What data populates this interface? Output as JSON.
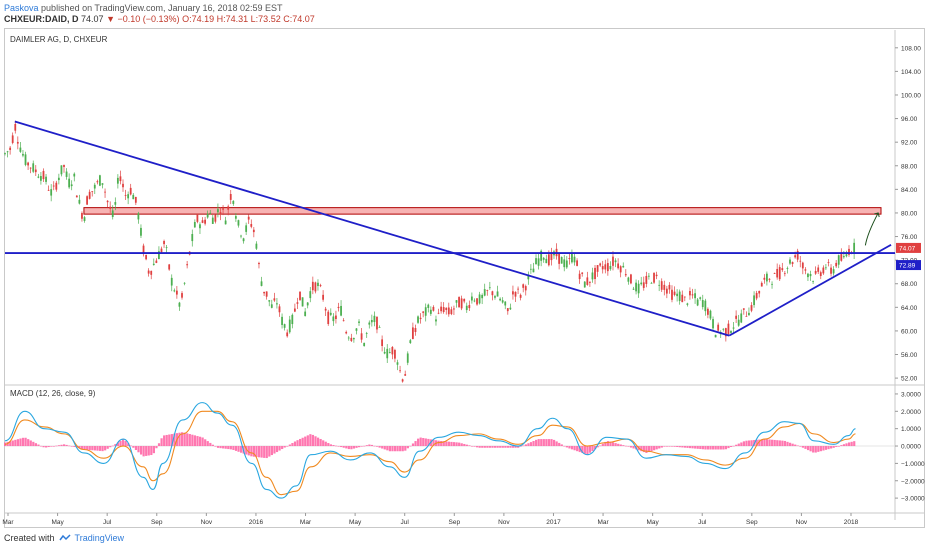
{
  "header": {
    "author": "Paskova",
    "published": "published on TradingView.com, January 16, 2018 02:59 EST",
    "symbol": "CHXEUR:DAID, D",
    "last": "74.07",
    "change": "−0.10 (−0.13%)",
    "ohlc_o": "O:74.19",
    "ohlc_h": "H:74.31",
    "ohlc_l": "L:73.52",
    "ohlc_c": "C:74.07"
  },
  "footer": {
    "created_with": "Created with",
    "brand": "TradingView"
  },
  "colors": {
    "up": "#4caf50",
    "down": "#e04040",
    "trend": "#1f1fc8",
    "zone_fill": "#f7b3b3",
    "zone_border": "#b00000",
    "macd": "#2aa7e0",
    "signal": "#f08a20",
    "hist": "#ff5fa2",
    "axis_text": "#333333"
  },
  "chart_data": [
    {
      "type": "candlestick",
      "title": "DAIMLER AG, D, CHXEUR",
      "x_labels": [
        "Mar",
        "May",
        "Jul",
        "Sep",
        "Nov",
        "2016",
        "Mar",
        "May",
        "Jul",
        "Sep",
        "Nov",
        "2017",
        "Mar",
        "May",
        "Jul",
        "Sep",
        "Nov",
        "2018"
      ],
      "y_ticks": [
        "108.00",
        "104.00",
        "100.00",
        "96.00",
        "92.00",
        "88.00",
        "84.00",
        "80.00",
        "76.00",
        "72.00",
        "68.00",
        "64.00",
        "60.00",
        "56.00",
        "52.00"
      ],
      "ylim": [
        51,
        110
      ],
      "price_labels": {
        "last": "74.07",
        "line": "72.89"
      },
      "horizontal_line": 73.2,
      "resistance_zone": [
        79.8,
        80.9
      ],
      "series_points": [
        [
          0,
          90
        ],
        [
          6,
          91
        ],
        [
          10,
          95
        ],
        [
          14,
          92
        ],
        [
          20,
          89
        ],
        [
          26,
          88
        ],
        [
          32,
          87
        ],
        [
          40,
          86
        ],
        [
          48,
          83
        ],
        [
          54,
          86
        ],
        [
          60,
          88
        ],
        [
          64,
          85
        ],
        [
          70,
          86
        ],
        [
          76,
          81
        ],
        [
          80,
          79
        ],
        [
          84,
          83
        ],
        [
          90,
          84
        ],
        [
          98,
          86
        ],
        [
          104,
          82
        ],
        [
          110,
          79
        ],
        [
          116,
          87
        ],
        [
          122,
          83
        ],
        [
          128,
          84
        ],
        [
          134,
          81
        ],
        [
          140,
          74
        ],
        [
          146,
          70
        ],
        [
          150,
          71
        ],
        [
          156,
          73
        ],
        [
          162,
          75
        ],
        [
          168,
          69
        ],
        [
          174,
          66
        ],
        [
          178,
          64
        ],
        [
          182,
          68
        ],
        [
          188,
          74
        ],
        [
          194,
          79
        ],
        [
          200,
          78
        ],
        [
          206,
          80
        ],
        [
          212,
          79
        ],
        [
          218,
          81
        ],
        [
          224,
          79
        ],
        [
          230,
          84
        ],
        [
          236,
          78
        ],
        [
          242,
          76
        ],
        [
          248,
          79
        ],
        [
          254,
          76
        ],
        [
          258,
          70
        ],
        [
          262,
          67
        ],
        [
          266,
          66
        ],
        [
          270,
          64
        ],
        [
          276,
          65
        ],
        [
          280,
          62
        ],
        [
          286,
          60
        ],
        [
          292,
          62
        ],
        [
          298,
          67
        ],
        [
          304,
          63
        ],
        [
          310,
          67
        ],
        [
          316,
          68
        ],
        [
          322,
          66
        ],
        [
          328,
          62
        ],
        [
          334,
          62
        ],
        [
          340,
          64
        ],
        [
          346,
          60
        ],
        [
          352,
          59
        ],
        [
          358,
          61
        ],
        [
          364,
          58
        ],
        [
          370,
          61
        ],
        [
          376,
          62
        ],
        [
          382,
          58
        ],
        [
          388,
          56
        ],
        [
          394,
          57
        ],
        [
          398,
          55
        ],
        [
          402,
          52
        ],
        [
          406,
          53
        ],
        [
          410,
          57
        ],
        [
          414,
          60
        ],
        [
          420,
          62
        ],
        [
          426,
          63
        ],
        [
          432,
          64
        ],
        [
          438,
          62
        ],
        [
          444,
          64
        ],
        [
          450,
          63
        ],
        [
          456,
          64
        ],
        [
          462,
          65
        ],
        [
          468,
          64
        ],
        [
          474,
          66
        ],
        [
          480,
          65
        ],
        [
          486,
          66
        ],
        [
          492,
          67
        ],
        [
          498,
          66
        ],
        [
          504,
          65
        ],
        [
          510,
          63
        ],
        [
          516,
          67
        ],
        [
          522,
          66
        ],
        [
          528,
          68
        ],
        [
          534,
          70
        ],
        [
          540,
          72
        ],
        [
          546,
          73
        ],
        [
          552,
          72
        ],
        [
          558,
          73
        ],
        [
          564,
          72
        ],
        [
          570,
          71
        ],
        [
          576,
          73
        ],
        [
          582,
          70
        ],
        [
          588,
          68
        ],
        [
          594,
          69
        ],
        [
          600,
          70
        ],
        [
          606,
          71
        ],
        [
          612,
          71
        ],
        [
          618,
          72
        ],
        [
          624,
          71
        ],
        [
          630,
          70
        ],
        [
          636,
          68
        ],
        [
          642,
          67
        ],
        [
          648,
          68
        ],
        [
          654,
          69
        ],
        [
          660,
          69
        ],
        [
          666,
          68
        ],
        [
          672,
          67
        ],
        [
          678,
          66
        ],
        [
          684,
          66
        ],
        [
          690,
          65
        ],
        [
          696,
          66
        ],
        [
          702,
          65
        ],
        [
          708,
          65
        ],
        [
          714,
          63
        ],
        [
          720,
          60
        ],
        [
          726,
          60
        ],
        [
          732,
          60
        ],
        [
          738,
          61
        ],
        [
          744,
          62
        ],
        [
          750,
          63
        ],
        [
          756,
          64
        ],
        [
          762,
          66
        ],
        [
          768,
          68
        ],
        [
          774,
          69
        ],
        [
          780,
          69
        ],
        [
          786,
          70
        ],
        [
          792,
          71
        ],
        [
          798,
          72
        ],
        [
          804,
          73
        ],
        [
          808,
          71
        ],
        [
          814,
          70
        ],
        [
          820,
          69
        ],
        [
          826,
          70
        ],
        [
          832,
          71
        ],
        [
          838,
          70
        ],
        [
          844,
          72
        ],
        [
          850,
          72
        ],
        [
          856,
          74
        ],
        [
          862,
          74
        ]
      ],
      "trendlines": [
        {
          "from": [
            10,
            95.5
          ],
          "to": [
            734,
            59.2
          ]
        },
        {
          "from": [
            734,
            59.2
          ],
          "to": [
            898,
            74.6
          ]
        }
      ],
      "arrow": {
        "from": [
          872,
          74.5
        ],
        "to": [
          885,
          80.0
        ]
      }
    },
    {
      "type": "line",
      "title": "MACD (12, 26, close, 9)",
      "y_ticks": [
        "3.0000",
        "2.0000",
        "1.0000",
        "0.0000",
        "−1.0000",
        "−2.0000",
        "−3.0000"
      ],
      "ylim": [
        -3.8,
        3.4
      ],
      "series": [
        {
          "name": "MACD",
          "values": [
            [
              0,
              0.3
            ],
            [
              20,
              2.0
            ],
            [
              40,
              1.0
            ],
            [
              60,
              0.8
            ],
            [
              80,
              -0.4
            ],
            [
              100,
              -1.0
            ],
            [
              120,
              0.4
            ],
            [
              140,
              -1.8
            ],
            [
              150,
              -2.5
            ],
            [
              160,
              -1.0
            ],
            [
              180,
              1.5
            ],
            [
              200,
              2.5
            ],
            [
              215,
              1.9
            ],
            [
              230,
              1.2
            ],
            [
              250,
              -1.0
            ],
            [
              265,
              -2.5
            ],
            [
              280,
              -3.0
            ],
            [
              295,
              -2.3
            ],
            [
              310,
              -0.5
            ],
            [
              330,
              -0.3
            ],
            [
              350,
              -0.8
            ],
            [
              370,
              -0.4
            ],
            [
              390,
              -1.2
            ],
            [
              405,
              -1.8
            ],
            [
              420,
              -0.3
            ],
            [
              440,
              0.5
            ],
            [
              460,
              0.8
            ],
            [
              480,
              0.6
            ],
            [
              500,
              0.3
            ],
            [
              520,
              0.0
            ],
            [
              540,
              1.0
            ],
            [
              555,
              1.6
            ],
            [
              570,
              1.0
            ],
            [
              590,
              -0.5
            ],
            [
              610,
              0.5
            ],
            [
              630,
              0.4
            ],
            [
              650,
              -0.7
            ],
            [
              670,
              -0.5
            ],
            [
              690,
              -0.6
            ],
            [
              710,
              -1.0
            ],
            [
              730,
              -1.3
            ],
            [
              750,
              -0.4
            ],
            [
              770,
              0.8
            ],
            [
              790,
              1.4
            ],
            [
              805,
              1.3
            ],
            [
              820,
              0.3
            ],
            [
              840,
              0.1
            ],
            [
              855,
              0.6
            ],
            [
              862,
              1.0
            ]
          ]
        },
        {
          "name": "Signal",
          "values": [
            [
              0,
              0.1
            ],
            [
              20,
              1.5
            ],
            [
              40,
              1.1
            ],
            [
              60,
              0.7
            ],
            [
              80,
              -0.2
            ],
            [
              100,
              -0.7
            ],
            [
              120,
              0.0
            ],
            [
              140,
              -1.2
            ],
            [
              150,
              -2.0
            ],
            [
              160,
              -1.6
            ],
            [
              180,
              0.7
            ],
            [
              200,
              2.0
            ],
            [
              215,
              2.0
            ],
            [
              230,
              1.4
            ],
            [
              250,
              -0.4
            ],
            [
              265,
              -1.8
            ],
            [
              280,
              -2.8
            ],
            [
              295,
              -2.6
            ],
            [
              310,
              -1.2
            ],
            [
              330,
              -0.4
            ],
            [
              350,
              -0.6
            ],
            [
              370,
              -0.5
            ],
            [
              390,
              -0.9
            ],
            [
              405,
              -1.5
            ],
            [
              420,
              -0.8
            ],
            [
              440,
              0.2
            ],
            [
              460,
              0.6
            ],
            [
              480,
              0.7
            ],
            [
              500,
              0.4
            ],
            [
              520,
              0.1
            ],
            [
              540,
              0.6
            ],
            [
              555,
              1.2
            ],
            [
              570,
              1.1
            ],
            [
              590,
              0.0
            ],
            [
              610,
              0.2
            ],
            [
              630,
              0.4
            ],
            [
              650,
              -0.3
            ],
            [
              670,
              -0.5
            ],
            [
              690,
              -0.5
            ],
            [
              710,
              -0.8
            ],
            [
              730,
              -1.1
            ],
            [
              750,
              -0.7
            ],
            [
              770,
              0.4
            ],
            [
              790,
              1.1
            ],
            [
              805,
              1.3
            ],
            [
              820,
              0.7
            ],
            [
              840,
              0.2
            ],
            [
              855,
              0.4
            ],
            [
              862,
              0.7
            ]
          ]
        }
      ],
      "histogram": [
        [
          0,
          0.2
        ],
        [
          20,
          0.5
        ],
        [
          40,
          -0.1
        ],
        [
          60,
          0.1
        ],
        [
          80,
          -0.2
        ],
        [
          100,
          -0.3
        ],
        [
          120,
          0.4
        ],
        [
          140,
          -0.6
        ],
        [
          150,
          -0.5
        ],
        [
          160,
          0.6
        ],
        [
          180,
          0.8
        ],
        [
          200,
          0.5
        ],
        [
          215,
          -0.1
        ],
        [
          230,
          -0.2
        ],
        [
          250,
          -0.6
        ],
        [
          265,
          -0.7
        ],
        [
          280,
          -0.2
        ],
        [
          295,
          0.3
        ],
        [
          310,
          0.7
        ],
        [
          330,
          0.1
        ],
        [
          350,
          -0.2
        ],
        [
          370,
          0.1
        ],
        [
          390,
          -0.3
        ],
        [
          405,
          -0.3
        ],
        [
          420,
          0.5
        ],
        [
          440,
          0.3
        ],
        [
          460,
          0.2
        ],
        [
          480,
          -0.1
        ],
        [
          500,
          -0.1
        ],
        [
          520,
          -0.1
        ],
        [
          540,
          0.4
        ],
        [
          555,
          0.4
        ],
        [
          570,
          -0.1
        ],
        [
          590,
          -0.5
        ],
        [
          610,
          0.3
        ],
        [
          630,
          0.0
        ],
        [
          650,
          -0.4
        ],
        [
          670,
          0.0
        ],
        [
          690,
          -0.1
        ],
        [
          710,
          -0.2
        ],
        [
          730,
          -0.2
        ],
        [
          750,
          0.3
        ],
        [
          770,
          0.4
        ],
        [
          790,
          0.3
        ],
        [
          805,
          0.0
        ],
        [
          820,
          -0.4
        ],
        [
          840,
          -0.1
        ],
        [
          855,
          0.2
        ],
        [
          862,
          0.3
        ]
      ]
    }
  ]
}
